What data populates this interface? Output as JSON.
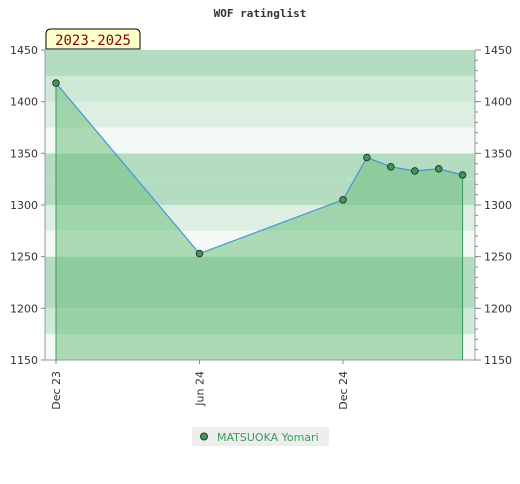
{
  "chart_data": {
    "type": "area",
    "title": "WOF ratinglist",
    "season_badge": "2023-2025",
    "xlabel": "",
    "ylabel": "",
    "ylim": [
      1150,
      1450
    ],
    "y_ticks": [
      1150,
      1200,
      1250,
      1300,
      1350,
      1400,
      1450
    ],
    "y_tick_labels": [
      "1150",
      "1200",
      "1250",
      "1300",
      "1350",
      "1400",
      "1450"
    ],
    "x_ticks": [
      {
        "label": "Dec 23",
        "x": "2023-12"
      },
      {
        "label": "Jun 24",
        "x": "2024-06"
      },
      {
        "label": "Dec 24",
        "x": "2024-12"
      }
    ],
    "grid": "horizontal bands",
    "legend_position": "bottom-center",
    "series": [
      {
        "name": "MATSUOKA Yomari",
        "color": "#4a90d9",
        "fill": "#6fbf7f",
        "marker_color": "#3a9a5a",
        "points": [
          {
            "x": "2023-12",
            "y": 1418
          },
          {
            "x": "2024-06",
            "y": 1253
          },
          {
            "x": "2024-12",
            "y": 1305
          },
          {
            "x": "2025-01",
            "y": 1346
          },
          {
            "x": "2025-02",
            "y": 1337
          },
          {
            "x": "2025-03",
            "y": 1333
          },
          {
            "x": "2025-04",
            "y": 1335
          },
          {
            "x": "2025-05",
            "y": 1329
          }
        ]
      }
    ]
  }
}
